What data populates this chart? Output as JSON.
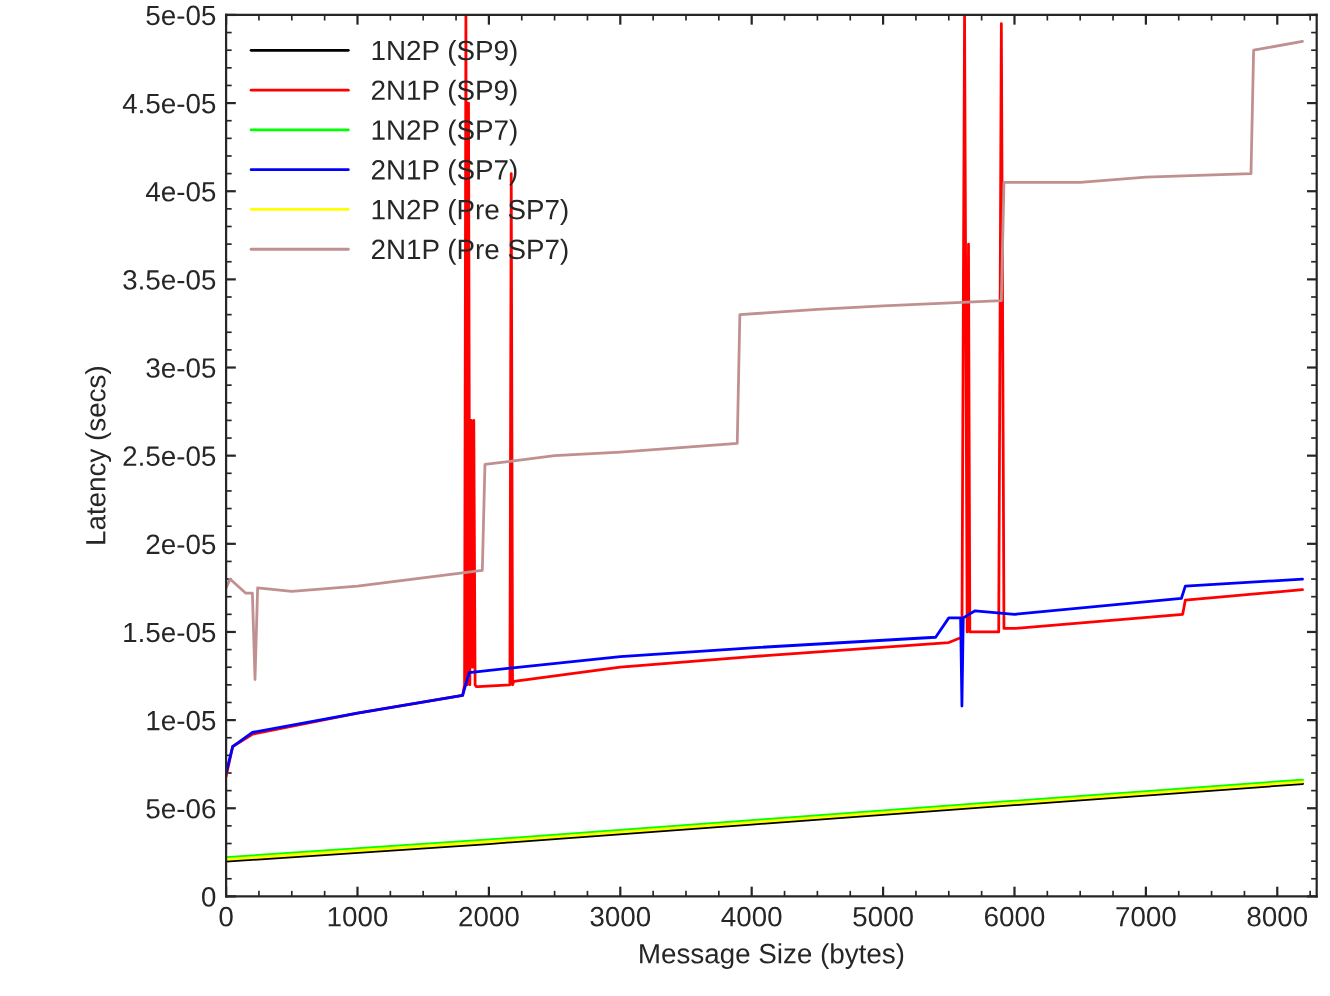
{
  "chart_data": {
    "type": "line",
    "xlabel": "Message Size (bytes)",
    "ylabel": "Latency (secs)",
    "xlim": [
      0,
      8300
    ],
    "ylim": [
      0,
      5e-05
    ],
    "xticks": [
      0,
      1000,
      2000,
      3000,
      4000,
      5000,
      6000,
      7000,
      8000
    ],
    "yticks": [
      {
        "value": 0,
        "label": "0"
      },
      {
        "value": 5e-06,
        "label": "5e-06"
      },
      {
        "value": 1e-05,
        "label": "1e-05"
      },
      {
        "value": 1.5e-05,
        "label": "1.5e-05"
      },
      {
        "value": 2e-05,
        "label": "2e-05"
      },
      {
        "value": 2.5e-05,
        "label": "2.5e-05"
      },
      {
        "value": 3e-05,
        "label": "3e-05"
      },
      {
        "value": 3.5e-05,
        "label": "3.5e-05"
      },
      {
        "value": 4e-05,
        "label": "4e-05"
      },
      {
        "value": 4.5e-05,
        "label": "4.5e-05"
      },
      {
        "value": 5e-05,
        "label": "5e-05"
      }
    ],
    "grid": false,
    "legend": "top left",
    "marker": "none",
    "line_style": "solid",
    "series": [
      {
        "name": "1N2P (SP9)",
        "color": "#000000",
        "x": [
          0,
          2000,
          4000,
          6000,
          8192
        ],
        "values": [
          2e-06,
          3e-06,
          4.1e-06,
          5.2e-06,
          6.4e-06
        ]
      },
      {
        "name": "2N1P (SP9)",
        "color": "#ff0000",
        "x": [
          0,
          50,
          200,
          1000,
          1800,
          1815,
          1825,
          1835,
          1845,
          1855,
          1865,
          1875,
          1885,
          1895,
          1905,
          1920,
          2160,
          2170,
          2180,
          2190,
          3000,
          4000,
          5500,
          5600,
          5620,
          5640,
          5650,
          5660,
          5680,
          5880,
          5900,
          5920,
          6000,
          7280,
          7300,
          8192
        ],
        "values": [
          6.8e-06,
          8.5e-06,
          9.2e-06,
          1.04e-05,
          1.14e-05,
          1.2e-05,
          5e-05,
          1.2e-05,
          4.5e-05,
          1.2e-05,
          2.7e-05,
          1.3e-05,
          2.7e-05,
          1.2e-05,
          1.19e-05,
          1.19e-05,
          1.2e-05,
          4.1e-05,
          1.2e-05,
          1.22e-05,
          1.3e-05,
          1.36e-05,
          1.44e-05,
          1.47e-05,
          5e-05,
          1.5e-05,
          3.7e-05,
          1.5e-05,
          1.5e-05,
          1.5e-05,
          4.95e-05,
          1.52e-05,
          1.52e-05,
          1.6e-05,
          1.68e-05,
          1.74e-05
        ]
      },
      {
        "name": "1N2P (SP7)",
        "color": "#00ff00",
        "x": [
          0,
          2000,
          4000,
          6000,
          8192
        ],
        "values": [
          2.2e-06,
          3.2e-06,
          4.3e-06,
          5.4e-06,
          6.6e-06
        ]
      },
      {
        "name": "2N1P (SP7)",
        "color": "#0000ff",
        "x": [
          0,
          50,
          200,
          1000,
          1800,
          1850,
          3000,
          4000,
          5400,
          5500,
          5590,
          5600,
          5610,
          5700,
          6000,
          7270,
          7300,
          8192
        ],
        "values": [
          7e-06,
          8.5e-06,
          9.3e-06,
          1.04e-05,
          1.14e-05,
          1.27e-05,
          1.36e-05,
          1.41e-05,
          1.47e-05,
          1.58e-05,
          1.58e-05,
          1.08e-05,
          1.58e-05,
          1.62e-05,
          1.6e-05,
          1.69e-05,
          1.76e-05,
          1.8e-05
        ]
      },
      {
        "name": "1N2P (Pre SP7)",
        "color": "#ffff00",
        "x": [
          0,
          2000,
          4000,
          6000,
          8192
        ],
        "values": [
          2.1e-06,
          3.1e-06,
          4.2e-06,
          5.3e-06,
          6.5e-06
        ]
      },
      {
        "name": "2N1P (Pre SP7)",
        "color": "#c09090",
        "x": [
          0,
          30,
          150,
          200,
          220,
          240,
          500,
          1000,
          1950,
          1970,
          2500,
          3000,
          3890,
          3910,
          4500,
          5000,
          5600,
          5900,
          5920,
          6500,
          7000,
          7800,
          7820,
          8192
        ],
        "values": [
          1.75e-05,
          1.8e-05,
          1.72e-05,
          1.72e-05,
          1.23e-05,
          1.75e-05,
          1.73e-05,
          1.76e-05,
          1.85e-05,
          2.45e-05,
          2.5e-05,
          2.52e-05,
          2.57e-05,
          3.3e-05,
          3.33e-05,
          3.35e-05,
          3.37e-05,
          3.38e-05,
          4.05e-05,
          4.05e-05,
          4.08e-05,
          4.1e-05,
          4.8e-05,
          4.85e-05
        ]
      }
    ]
  }
}
